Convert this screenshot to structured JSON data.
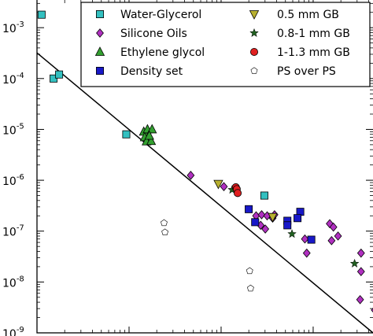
{
  "chart_data": {
    "type": "scatter",
    "y_scale": "log",
    "x_scale": "log",
    "y_ticks": [
      {
        "value": 0.001,
        "base": "10",
        "exp": "-3"
      },
      {
        "value": 0.0001,
        "base": "10",
        "exp": "-4"
      },
      {
        "value": 1e-05,
        "base": "10",
        "exp": "-5"
      },
      {
        "value": 1e-06,
        "base": "10",
        "exp": "-6"
      },
      {
        "value": 1e-07,
        "base": "10",
        "exp": "-7"
      },
      {
        "value": 1e-08,
        "base": "10",
        "exp": "-8"
      },
      {
        "value": 1e-09,
        "base": "10",
        "exp": "-9"
      }
    ],
    "ylim": [
      1e-09,
      0.0035
    ],
    "x_axis": {
      "min_decade": 0,
      "max_decade": 3.65
    },
    "fit_line": {
      "x": [
        0,
        3.65
      ],
      "y": [
        0.00032,
        1e-09
      ]
    },
    "legend_position": "top-right",
    "series": [
      {
        "name": "Water-Glycerol",
        "marker": "square",
        "color": "#33c0c0",
        "points": [
          [
            0.05,
            0.0018
          ],
          [
            0.18,
            0.0001
          ],
          [
            0.24,
            0.00012
          ],
          [
            0.97,
            8e-06
          ],
          [
            2.47,
            5e-07
          ]
        ]
      },
      {
        "name": "Silicone Oils",
        "marker": "diamond",
        "color": "#b030c0",
        "points": [
          [
            1.67,
            1.25e-06
          ],
          [
            2.03,
            7.5e-07
          ],
          [
            2.38,
            2e-07
          ],
          [
            2.44,
            2.1e-07
          ],
          [
            2.5,
            2e-07
          ],
          [
            2.56,
            1.8e-07
          ],
          [
            2.43,
            1.3e-07
          ],
          [
            2.48,
            1.1e-07
          ],
          [
            2.58,
            2.1e-07
          ],
          [
            2.91,
            7e-08
          ],
          [
            2.93,
            3.7e-08
          ],
          [
            3.18,
            1.4e-07
          ],
          [
            3.22,
            1.2e-07
          ],
          [
            3.27,
            8e-08
          ],
          [
            3.2,
            6.5e-08
          ],
          [
            3.52,
            3.7e-08
          ],
          [
            3.52,
            1.6e-08
          ],
          [
            3.51,
            4.5e-09
          ],
          [
            3.67,
            2.8e-09
          ]
        ]
      },
      {
        "name": "Ethylene glycol",
        "marker": "triangle-up",
        "color": "#33a030",
        "points": [
          [
            1.16,
            9e-06
          ],
          [
            1.2,
            1e-05
          ],
          [
            1.25,
            1e-05
          ],
          [
            1.17,
            7e-06
          ],
          [
            1.19,
            5.8e-06
          ],
          [
            1.24,
            5.9e-06
          ],
          [
            1.22,
            7.5e-06
          ]
        ]
      },
      {
        "name": "Density set",
        "marker": "square",
        "color": "#1818c8",
        "points": [
          [
            2.3,
            2.7e-07
          ],
          [
            2.37,
            1.5e-07
          ],
          [
            2.72,
            1.6e-07
          ],
          [
            2.72,
            1.3e-07
          ],
          [
            2.86,
            2.4e-07
          ],
          [
            2.83,
            1.8e-07
          ],
          [
            2.98,
            6.8e-08
          ]
        ]
      },
      {
        "name": "0.5 mm GB",
        "marker": "triangle-down",
        "color": "#b8b030",
        "points": [
          [
            1.97,
            8.5e-07
          ],
          [
            2.56,
            1.9e-07
          ]
        ]
      },
      {
        "name": "0.8-1 mm GB",
        "marker": "star",
        "color": "#206020",
        "points": [
          [
            2.12,
            6.5e-07
          ],
          [
            2.77,
            8.8e-08
          ],
          [
            3.45,
            2.3e-08
          ]
        ]
      },
      {
        "name": "1-1.3 mm GB",
        "marker": "circle",
        "color": "#e02020",
        "points": [
          [
            2.16,
            7.3e-07
          ],
          [
            2.17,
            6.7e-07
          ],
          [
            2.18,
            5.6e-07
          ]
        ]
      },
      {
        "name": "PS over PS",
        "marker": "pentagon",
        "color": "#ffffff",
        "points": [
          [
            1.38,
            1.45e-07
          ],
          [
            1.39,
            9.5e-08
          ],
          [
            2.31,
            1.65e-08
          ],
          [
            2.32,
            7.5e-09
          ]
        ]
      }
    ]
  }
}
